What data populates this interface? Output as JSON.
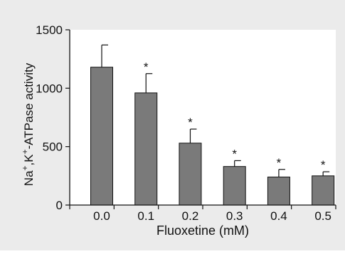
{
  "chart_data": {
    "type": "bar",
    "title": "",
    "xlabel": "Fluoxetine (mM)",
    "ylabel_parts": [
      "Na",
      "+",
      ",K",
      "+",
      "-ATPase activity"
    ],
    "categories": [
      "0.0",
      "0.1",
      "0.2",
      "0.3",
      "0.4",
      "0.5"
    ],
    "series": [
      {
        "values": [
          1180,
          960,
          530,
          330,
          240,
          250
        ],
        "error": [
          190,
          165,
          120,
          50,
          65,
          35
        ],
        "significance": [
          "",
          "*",
          "*",
          "*",
          "*",
          "*"
        ]
      }
    ],
    "ylim": [
      0,
      1500
    ],
    "yticks": [
      0,
      500,
      1000,
      1500
    ],
    "grid": false,
    "legend": "none",
    "colors": {
      "background": "#ebebeb",
      "plot_area": "#ffffff",
      "bar_fill": "#7a7a7a",
      "bar_stroke": "#111111",
      "axis": "#111111"
    }
  }
}
